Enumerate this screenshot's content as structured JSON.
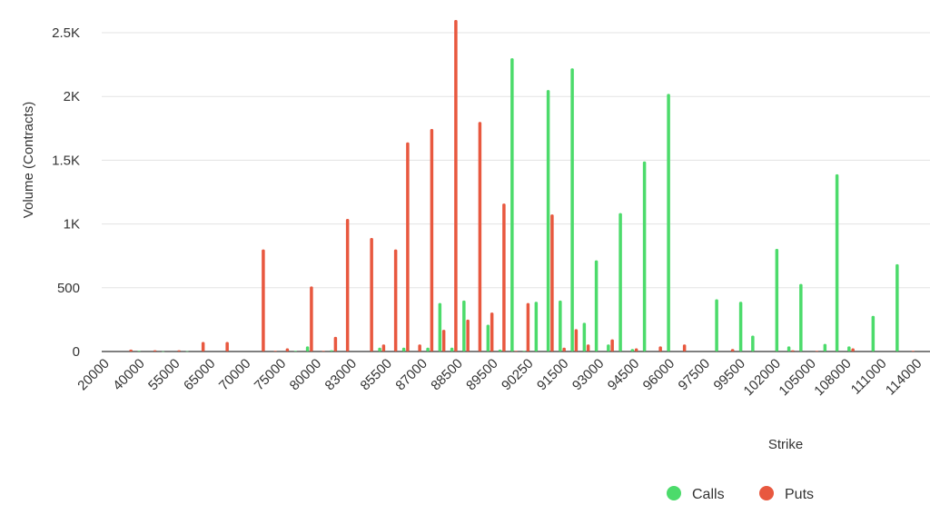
{
  "chart_data": {
    "type": "bar",
    "ylabel": "Volume (Contracts)",
    "xlabel": "Strike",
    "ylim": [
      0,
      2500
    ],
    "yticks": [
      {
        "value": 0,
        "label": "0"
      },
      {
        "value": 500,
        "label": "500"
      },
      {
        "value": 1000,
        "label": "1K"
      },
      {
        "value": 1500,
        "label": "1.5K"
      },
      {
        "value": 2000,
        "label": "2K"
      },
      {
        "value": 2500,
        "label": "2.5K"
      }
    ],
    "xtick_labels": [
      "20000",
      "40000",
      "55000",
      "65000",
      "70000",
      "75000",
      "80000",
      "83000",
      "85500",
      "87000",
      "88500",
      "89500",
      "90250",
      "91500",
      "93000",
      "94500",
      "96000",
      "97500",
      "99500",
      "102000",
      "105000",
      "108000",
      "111000",
      "114000"
    ],
    "grid": true,
    "legend_position": "bottom-right",
    "series": [
      {
        "name": "Calls",
        "color": "#4cdb6b",
        "values": [
          0,
          5,
          0,
          2,
          0,
          3,
          0,
          0,
          0,
          0,
          0,
          0,
          0,
          0,
          5,
          40,
          0,
          10,
          0,
          0,
          0,
          30,
          0,
          30,
          0,
          30,
          380,
          30,
          400,
          0,
          210,
          15,
          2300,
          5,
          390,
          2050,
          400,
          2220,
          225,
          715,
          55,
          1085,
          20,
          1490,
          0,
          2020,
          0,
          0,
          0,
          410,
          0,
          390,
          125,
          0,
          805,
          40,
          530,
          0,
          60,
          1390,
          40,
          0,
          280,
          0,
          685,
          0
        ]
      },
      {
        "name": "Puts",
        "color": "#e8583f",
        "values": [
          15,
          0,
          10,
          0,
          10,
          0,
          75,
          0,
          75,
          0,
          0,
          800,
          5,
          25,
          0,
          510,
          5,
          115,
          1040,
          0,
          890,
          55,
          800,
          1640,
          55,
          1745,
          170,
          2600,
          250,
          1800,
          305,
          1160,
          5,
          380,
          0,
          1075,
          30,
          175,
          55,
          0,
          95,
          0,
          25,
          0,
          40,
          0,
          55,
          0,
          0,
          0,
          20,
          0,
          0,
          0,
          0,
          10,
          0,
          5,
          0,
          0,
          25,
          0,
          0,
          0,
          0,
          5
        ]
      }
    ]
  }
}
